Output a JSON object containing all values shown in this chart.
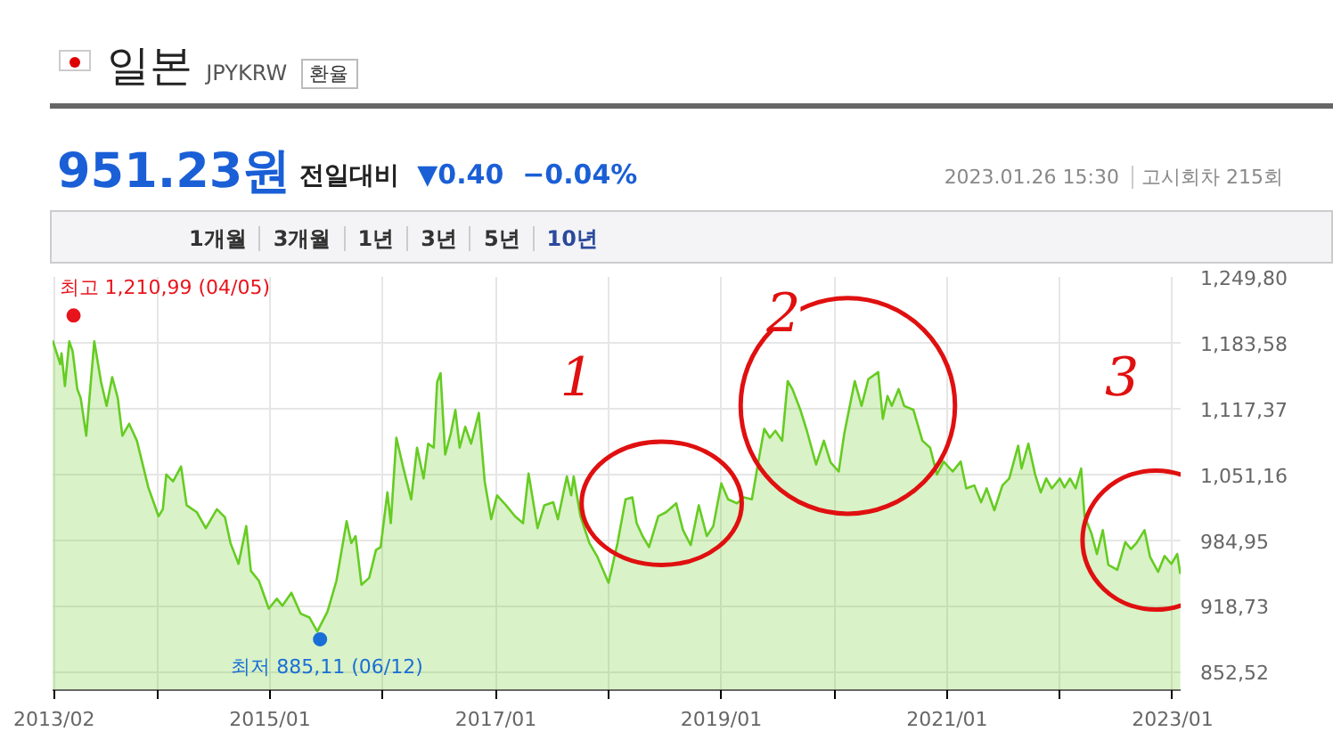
{
  "chart_data": {
    "type": "area",
    "title": "일본",
    "subtitle": "JPYKRW",
    "annotations": [
      "환율",
      "951.23원",
      "전일대비",
      "▼0.40",
      "−0.04%",
      "2023.01.26 15:30",
      "고시회차 215회",
      "1개월",
      "3개월",
      "1년",
      "3년",
      "5년",
      "10년",
      {
        "text": "최고 1,210,99 (04/05)",
        "x": "2013-04-05",
        "y": 1210.99
      },
      {
        "text": "최저 885,11 (06/12)",
        "x": "2015-06-12",
        "y": 885.11
      },
      "1",
      "2",
      "3"
    ],
    "x": [
      "2013-01-27",
      "2013-02-21",
      "2013-02-25",
      "2013-03-08",
      "2013-03-22",
      "2013-04-02",
      "2013-04-17",
      "2013-04-28",
      "2013-05-16",
      "2013-06-11",
      "2013-07-03",
      "2013-07-21",
      "2013-08-08",
      "2013-08-26",
      "2013-09-10",
      "2013-10-02",
      "2013-10-27",
      "2013-12-03",
      "2014-01-05",
      "2014-01-19",
      "2014-01-30",
      "2014-02-21",
      "2014-03-19",
      "2014-04-06",
      "2014-05-09",
      "2014-06-07",
      "2014-07-13",
      "2014-08-08",
      "2014-08-26",
      "2014-09-21",
      "2014-10-16",
      "2014-10-31",
      "2014-11-26",
      "2014-12-28",
      "2015-01-23",
      "2015-02-10",
      "2015-03-11",
      "2015-04-10",
      "2015-05-09",
      "2015-06-03",
      "2015-07-06",
      "2015-08-04",
      "2015-09-06",
      "2015-09-21",
      "2015-10-05",
      "2015-10-24",
      "2015-11-18",
      "2015-12-10",
      "2015-12-25",
      "2016-01-16",
      "2016-01-27",
      "2016-02-14",
      "2016-03-08",
      "2016-04-02",
      "2016-04-21",
      "2016-05-12",
      "2016-05-27",
      "2016-06-14",
      "2016-06-25",
      "2016-07-06",
      "2016-07-21",
      "2016-08-08",
      "2016-08-23",
      "2016-09-06",
      "2016-09-24",
      "2016-10-13",
      "2016-11-07",
      "2016-11-26",
      "2016-12-17",
      "2017-01-05",
      "2017-02-03",
      "2017-03-04",
      "2017-03-30",
      "2017-04-17",
      "2017-05-16",
      "2017-06-07",
      "2017-07-06",
      "2017-07-21",
      "2017-08-19",
      "2017-09-02",
      "2017-09-10",
      "2017-10-02",
      "2017-10-31",
      "2017-11-26",
      "2018-01-01",
      "2018-01-30",
      "2018-02-25",
      "2018-03-19",
      "2018-04-02",
      "2018-04-21",
      "2018-05-12",
      "2018-06-11",
      "2018-07-06",
      "2018-08-08",
      "2018-08-30",
      "2018-09-24",
      "2018-10-20",
      "2018-11-15",
      "2018-12-06",
      "2019-01-01",
      "2019-01-23",
      "2019-02-21",
      "2019-03-15",
      "2019-04-10",
      "2019-05-01",
      "2019-05-20",
      "2019-06-07",
      "2019-06-25",
      "2019-07-17",
      "2019-08-04",
      "2019-08-19",
      "2019-09-14",
      "2019-10-05",
      "2019-11-04",
      "2019-11-29",
      "2019-12-21",
      "2020-01-16",
      "2020-02-03",
      "2020-03-08",
      "2020-03-30",
      "2020-04-21",
      "2020-05-23",
      "2020-06-07",
      "2020-06-22",
      "2020-07-06",
      "2020-07-28",
      "2020-08-15",
      "2020-09-14",
      "2020-10-13",
      "2020-11-07",
      "2020-11-29",
      "2020-12-21",
      "2021-01-19",
      "2021-02-14",
      "2021-03-04",
      "2021-03-30",
      "2021-04-21",
      "2021-05-09",
      "2021-06-03",
      "2021-06-29",
      "2021-07-21",
      "2021-08-19",
      "2021-08-30",
      "2021-09-21",
      "2021-10-13",
      "2021-10-31",
      "2021-11-18",
      "2021-12-06",
      "2022-01-01",
      "2022-01-16",
      "2022-02-03",
      "2022-02-21",
      "2022-03-11",
      "2022-03-22",
      "2022-04-13",
      "2022-05-01",
      "2022-05-20",
      "2022-06-07",
      "2022-07-06",
      "2022-08-01",
      "2022-08-19",
      "2022-09-06",
      "2022-10-02",
      "2022-10-20",
      "2022-11-15",
      "2022-12-06",
      "2022-12-28",
      "2023-01-16",
      "2023-01-26"
    ],
    "series": [
      {
        "color": "#66cc22",
        "values": [
          1186,
          1162,
          1173,
          1140,
          1185,
          1175,
          1137,
          1128,
          1090,
          1185,
          1144,
          1120,
          1149,
          1128,
          1090,
          1102,
          1085,
          1038,
          1009,
          1016,
          1051,
          1044,
          1059,
          1020,
          1013,
          997,
          1016,
          1008,
          982,
          961,
          999,
          954,
          944,
          916,
          926,
          919,
          932,
          911,
          907,
          893,
          913,
          944,
          1004,
          982,
          989,
          940,
          947,
          975,
          978,
          1033,
          1002,
          1088,
          1057,
          1026,
          1078,
          1047,
          1082,
          1078,
          1144,
          1153,
          1071,
          1092,
          1116,
          1078,
          1099,
          1082,
          1113,
          1044,
          1006,
          1030,
          1020,
          1009,
          1002,
          1052,
          997,
          1020,
          1023,
          1006,
          1049,
          1030,
          1049,
          1009,
          982,
          968,
          942,
          982,
          1026,
          1028,
          1002,
          989,
          978,
          1009,
          1013,
          1022,
          995,
          980,
          1020,
          989,
          999,
          1042,
          1026,
          1022,
          1028,
          1026,
          1064,
          1097,
          1088,
          1095,
          1085,
          1145,
          1137,
          1116,
          1095,
          1061,
          1085,
          1063,
          1054,
          1092,
          1145,
          1120,
          1147,
          1154,
          1107,
          1130,
          1120,
          1137,
          1120,
          1116,
          1085,
          1078,
          1051,
          1064,
          1054,
          1064,
          1037,
          1040,
          1023,
          1037,
          1015,
          1040,
          1047,
          1080,
          1057,
          1082,
          1051,
          1033,
          1047,
          1037,
          1047,
          1038,
          1047,
          1037,
          1057,
          1009,
          992,
          971,
          995,
          960,
          955,
          983,
          976,
          982,
          995,
          968,
          953,
          969,
          961,
          971,
          951
        ]
      }
    ],
    "xlim": [
      "2013-01-27",
      "2023-01-27"
    ],
    "xticks": [
      {
        "value": "2013-02",
        "label": "2013/02"
      },
      {
        "value": "2014-01",
        "label": null
      },
      {
        "value": "2015-01",
        "label": "2015/01"
      },
      {
        "value": "2016-01",
        "label": null
      },
      {
        "value": "2017-01",
        "label": "2017/01"
      },
      {
        "value": "2018-01",
        "label": null
      },
      {
        "value": "2019-01",
        "label": "2019/01"
      },
      {
        "value": "2020-01",
        "label": null
      },
      {
        "value": "2021-01",
        "label": "2021/01"
      },
      {
        "value": "2022-01",
        "label": null
      },
      {
        "value": "2023-01",
        "label": "2023/01"
      }
    ],
    "ylim": [
      834,
      1249.8
    ],
    "yticks": [
      {
        "value": 852.52,
        "label": "852,52"
      },
      {
        "value": 918.73,
        "label": "918,73"
      },
      {
        "value": 984.95,
        "label": "984,95"
      },
      {
        "value": 1051.16,
        "label": "1,051,16"
      },
      {
        "value": 1117.37,
        "label": "1,117,37"
      },
      {
        "value": 1183.58,
        "label": "1,183,58"
      },
      {
        "value": 1249.8,
        "label": "1,249,80"
      }
    ],
    "grid": true
  }
}
